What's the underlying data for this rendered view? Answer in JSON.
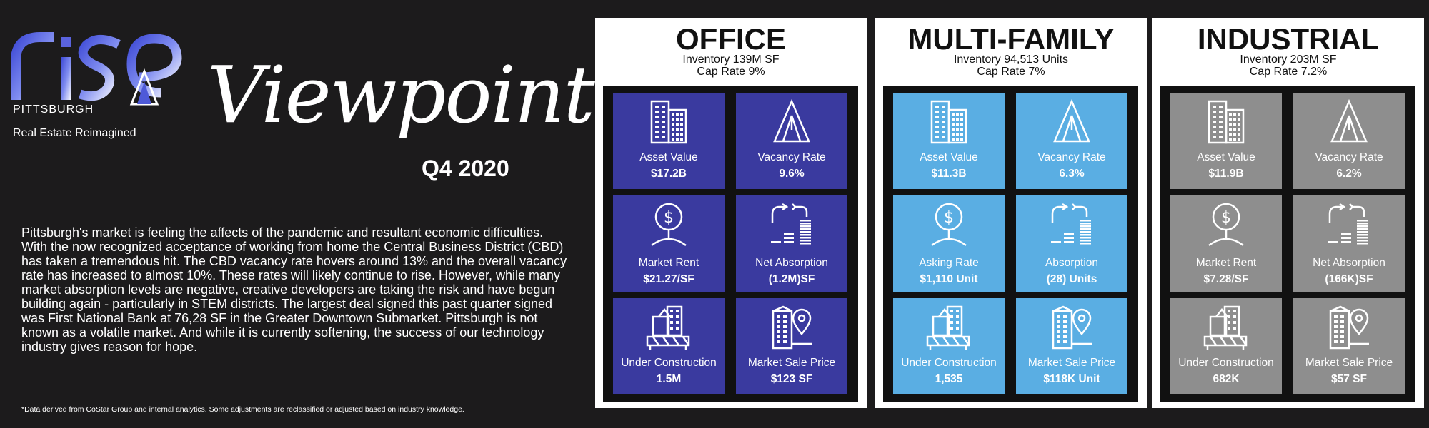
{
  "brand": {
    "logo_word": "rise",
    "city": "PITTSBURGH",
    "tagline": "Real Estate Reimagined"
  },
  "title": "Viewpoint",
  "quarter": "Q4 2020",
  "summary": "Pittsburgh's market is feeling the affects of the pandemic and resultant economic difficulties. With the now recognized acceptance of working from home the Central Business District (CBD) has taken a tremendous hit. The CBD vacancy rate hovers around 13% and the overall vacancy rate has increased to almost 10%. These rates will likely continue to rise. However, while many market absorption levels are negative, creative developers are taking the risk and have begun building again - particularly in STEM districts. The largest deal signed this past quarter signed was First National Bank at 76,28 SF in the Greater Downtown Submarket. Pittsburgh is not known as a volatile market. And while it is currently softening, the success of our technology industry gives reason for hope.",
  "footnote": "*Data derived from CoStar Group and internal analytics. Some adjustments are reclassified or adjusted based on industry knowledge.",
  "colors": {
    "office": "#3a3a9f",
    "multifamily": "#5aaee3",
    "industrial": "#8e8e8e"
  },
  "panels": [
    {
      "title": "OFFICE",
      "inventory": "Inventory 139M SF",
      "cap_rate": "Cap Rate 9%",
      "tiles": [
        {
          "icon": "building-icon",
          "label": "Asset Value",
          "value": "$17.2B"
        },
        {
          "icon": "triangle-icon",
          "label": "Vacancy Rate",
          "value": "9.6%"
        },
        {
          "icon": "dollar-person-icon",
          "label": "Market Rent",
          "value": "$21.27/SF"
        },
        {
          "icon": "absorption-icon",
          "label": "Net Absorption",
          "value": "(1.2M)SF"
        },
        {
          "icon": "construction-icon",
          "label": "Under Construction",
          "value": "1.5M"
        },
        {
          "icon": "location-building-icon",
          "label": "Market Sale Price",
          "value": "$123 SF"
        }
      ]
    },
    {
      "title": "MULTI-FAMILY",
      "inventory": "Inventory 94,513 Units",
      "cap_rate": "Cap Rate 7%",
      "tiles": [
        {
          "icon": "building-icon",
          "label": "Asset Value",
          "value": "$11.3B"
        },
        {
          "icon": "triangle-icon",
          "label": "Vacancy Rate",
          "value": "6.3%"
        },
        {
          "icon": "dollar-person-icon",
          "label": "Asking Rate",
          "value": "$1,110 Unit"
        },
        {
          "icon": "absorption-icon",
          "label": "Absorption",
          "value": "(28) Units"
        },
        {
          "icon": "construction-icon",
          "label": "Under Construction",
          "value": "1,535"
        },
        {
          "icon": "location-building-icon",
          "label": "Market Sale Price",
          "value": "$118K Unit"
        }
      ]
    },
    {
      "title": "INDUSTRIAL",
      "inventory": "Inventory 203M SF",
      "cap_rate": "Cap Rate 7.2%",
      "tiles": [
        {
          "icon": "building-icon",
          "label": "Asset Value",
          "value": "$11.9B"
        },
        {
          "icon": "triangle-icon",
          "label": "Vacancy Rate",
          "value": "6.2%"
        },
        {
          "icon": "dollar-person-icon",
          "label": "Market Rent",
          "value": "$7.28/SF"
        },
        {
          "icon": "absorption-icon",
          "label": "Net Absorption",
          "value": "(166K)SF"
        },
        {
          "icon": "construction-icon",
          "label": "Under Construction",
          "value": "682K"
        },
        {
          "icon": "location-building-icon",
          "label": "Market Sale Price",
          "value": "$57 SF"
        }
      ]
    }
  ]
}
